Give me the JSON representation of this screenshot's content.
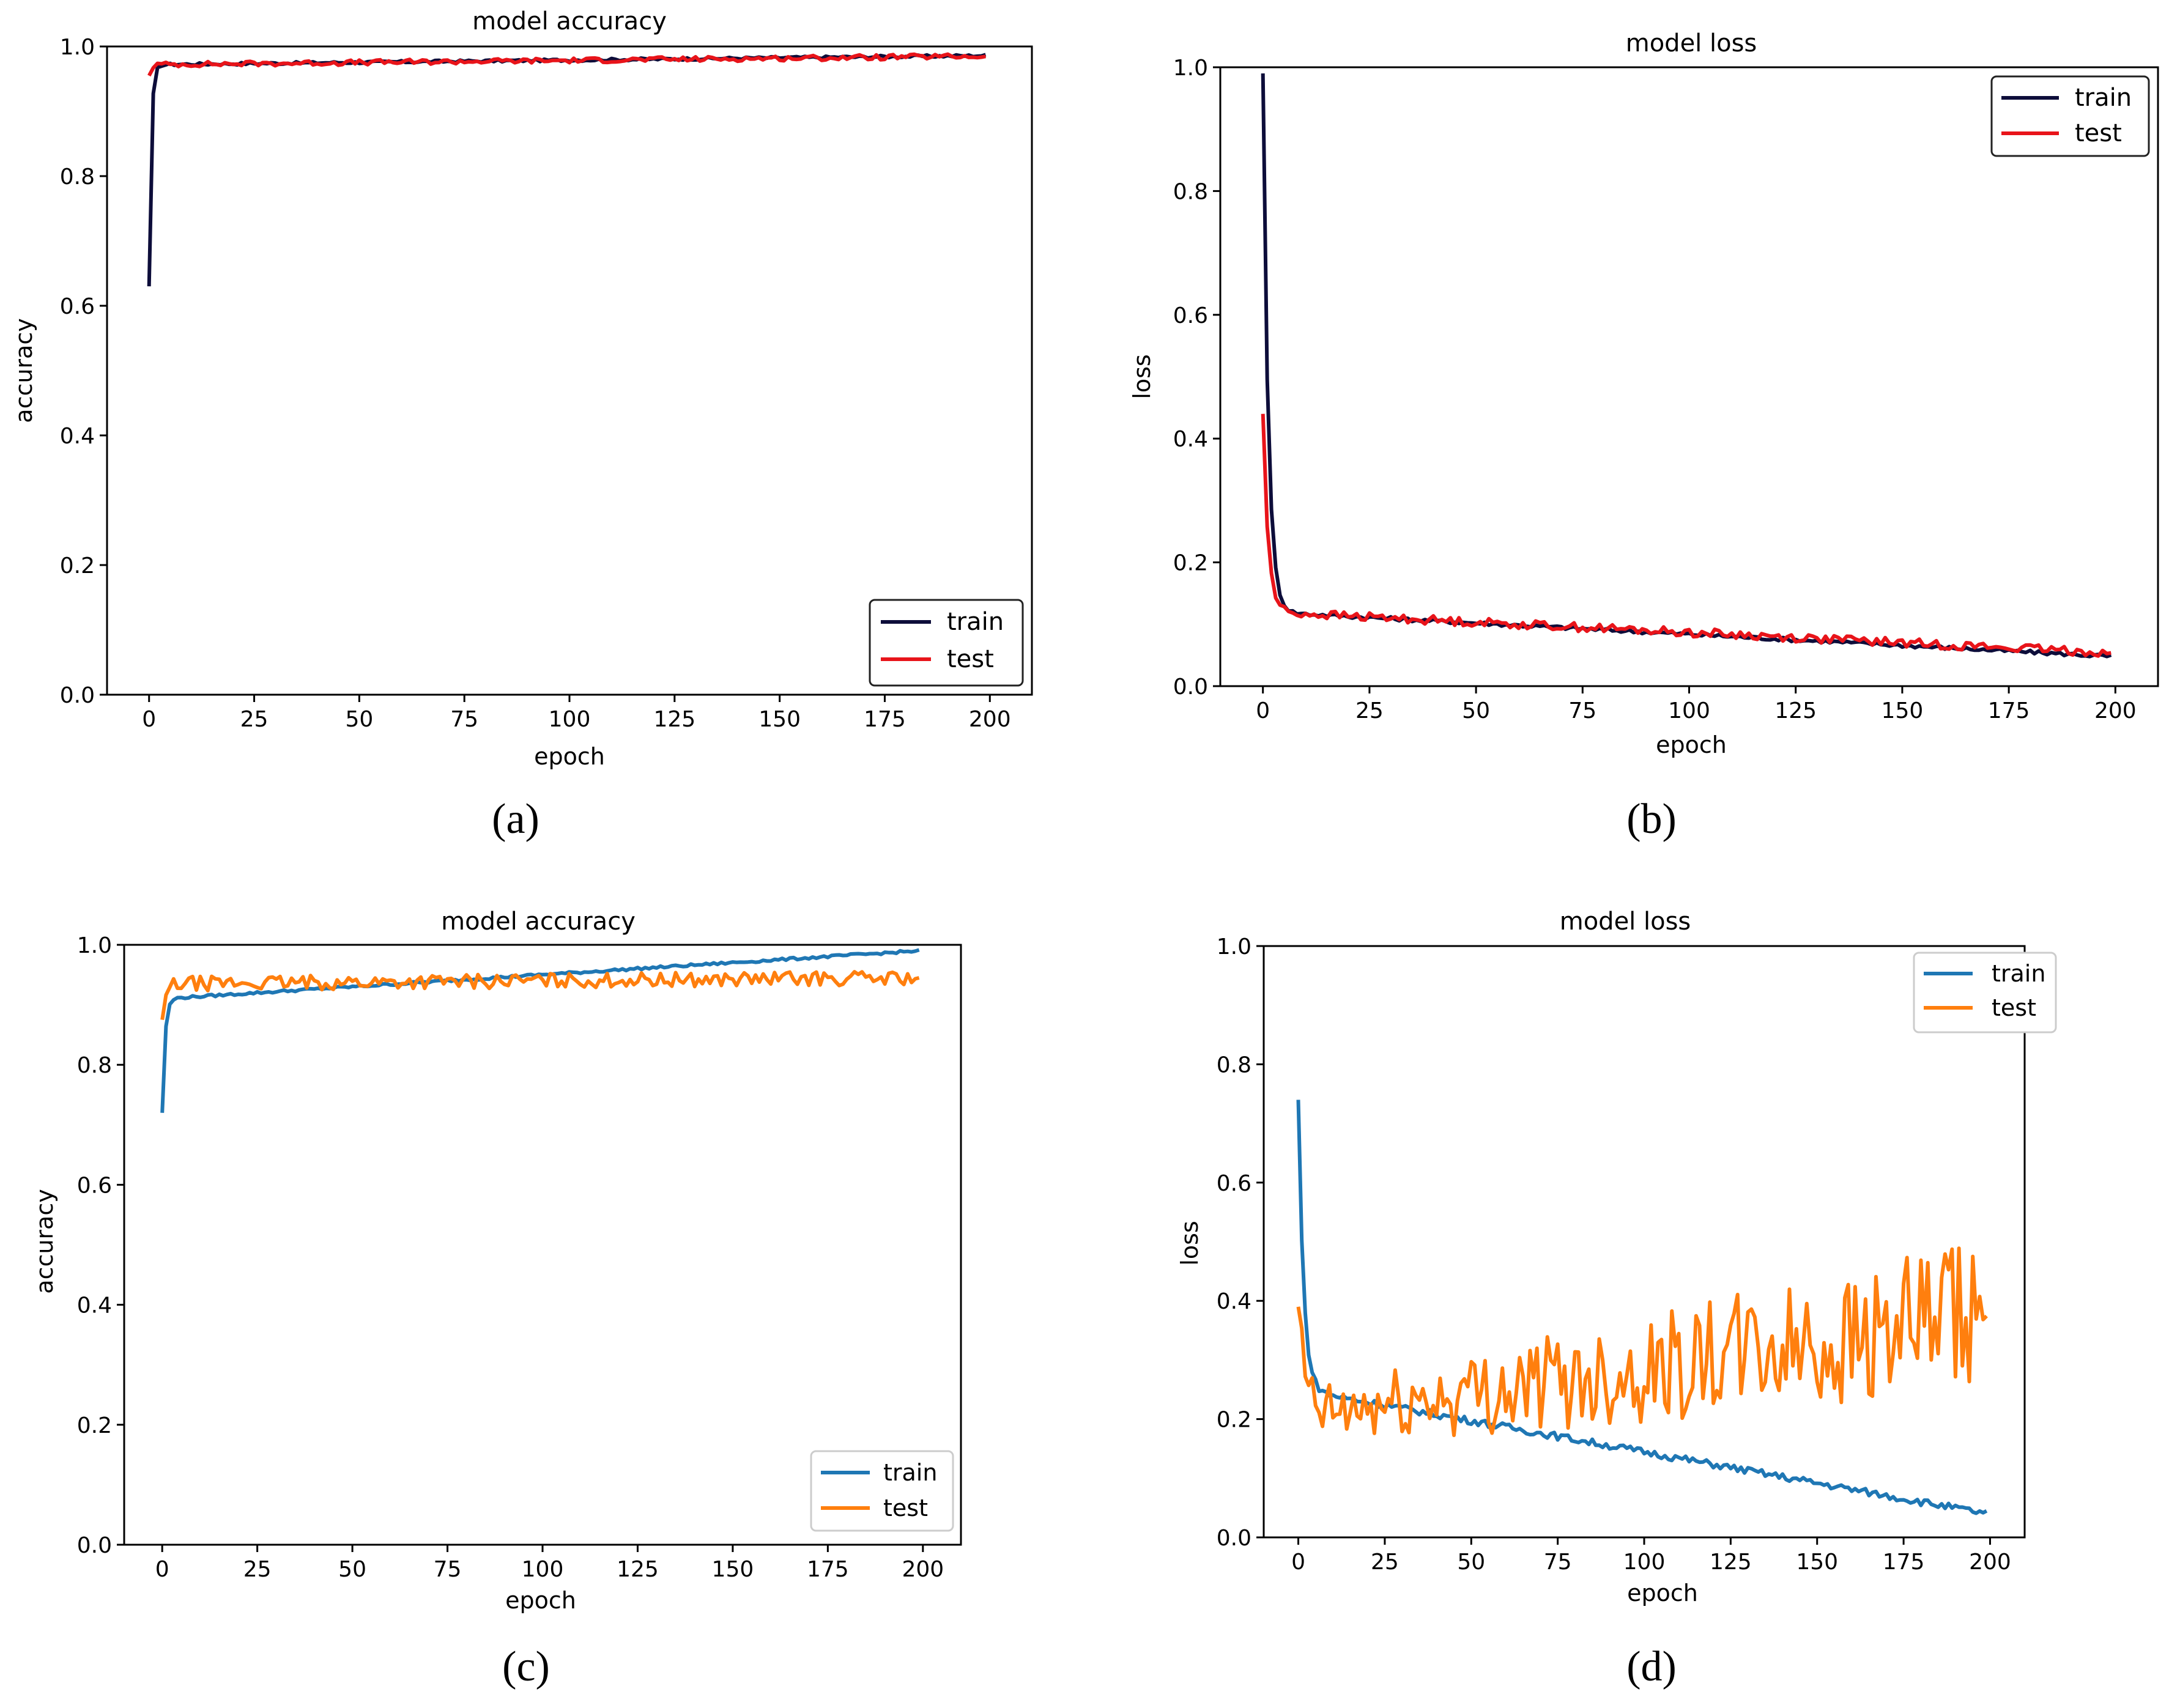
{
  "chart_data": [
    {
      "id": "a",
      "type": "line",
      "panel_label": "(a)",
      "title": "model accuracy",
      "xlabel": "epoch",
      "ylabel": "accuracy",
      "xlim": [
        -10,
        210
      ],
      "ylim": [
        0.0,
        1.0
      ],
      "xticks": [
        "0",
        "25",
        "50",
        "75",
        "100",
        "125",
        "150",
        "175",
        "200"
      ],
      "yticks": [
        "0.0",
        "0.2",
        "0.4",
        "0.6",
        "0.8",
        "1.0"
      ],
      "legend_position": "lower-right",
      "series": [
        {
          "name": "train",
          "color": "#0d0d3a",
          "start": 0.63,
          "plateau": 0.972,
          "end": 0.986,
          "tau": 0.5,
          "noise": 0.002
        },
        {
          "name": "test",
          "color": "#e8141a",
          "start": 0.955,
          "plateau": 0.972,
          "end": 0.985,
          "tau": 0.5,
          "noise": 0.004
        }
      ]
    },
    {
      "id": "b",
      "type": "line",
      "panel_label": "(b)",
      "title": "model loss",
      "xlabel": "epoch",
      "ylabel": "loss",
      "xlim": [
        -10,
        210
      ],
      "ylim": [
        0.0,
        1.0
      ],
      "xticks": [
        "0",
        "25",
        "50",
        "75",
        "100",
        "125",
        "150",
        "175",
        "200"
      ],
      "yticks": [
        "0.0",
        "0.2",
        "0.4",
        "0.6",
        "0.8",
        "1.0"
      ],
      "legend_position": "top-right",
      "series": [
        {
          "name": "train",
          "color": "#0d0d3a",
          "start": 0.99,
          "plateau": 0.12,
          "end": 0.048,
          "tau": 1.2,
          "noise": 0.003
        },
        {
          "name": "test",
          "color": "#e8141a",
          "start": 0.44,
          "plateau": 0.12,
          "end": 0.054,
          "tau": 1.2,
          "noise": 0.007
        }
      ]
    },
    {
      "id": "c",
      "type": "line",
      "panel_label": "(c)",
      "title": "model accuracy",
      "xlabel": "epoch",
      "ylabel": "accuracy",
      "xlim": [
        -10,
        210
      ],
      "ylim": [
        0.0,
        1.0
      ],
      "xticks": [
        "0",
        "25",
        "50",
        "75",
        "100",
        "125",
        "150",
        "175",
        "200"
      ],
      "yticks": [
        "0.0",
        "0.2",
        "0.4",
        "0.6",
        "0.8",
        "1.0"
      ],
      "legend_position": "lower-right",
      "series": [
        {
          "name": "train",
          "color": "#1f77b4",
          "start": 0.72,
          "plateau": 0.91,
          "end": 0.99,
          "tau": 0.7,
          "noise": 0.002
        },
        {
          "name": "test",
          "color": "#ff7f0e",
          "start": 0.875,
          "plateau": 0.935,
          "end": 0.945,
          "tau": 1.0,
          "noise": 0.012
        }
      ]
    },
    {
      "id": "d",
      "type": "line",
      "panel_label": "(d)",
      "title": "model loss",
      "xlabel": "epoch",
      "ylabel": "loss",
      "xlim": [
        -10,
        210
      ],
      "ylim": [
        0.0,
        1.0
      ],
      "xticks": [
        "0",
        "25",
        "50",
        "75",
        "100",
        "125",
        "150",
        "175",
        "200"
      ],
      "yticks": [
        "0.0",
        "0.2",
        "0.4",
        "0.6",
        "0.8",
        "1.0"
      ],
      "legend_position": "top-right",
      "series": [
        {
          "name": "train",
          "color": "#1f77b4",
          "start": 0.74,
          "plateau": 0.25,
          "end": 0.04,
          "tau": 1.5,
          "noise": 0.006
        },
        {
          "name": "test",
          "color": "#ff7f0e",
          "start": 0.39,
          "plateau": 0.2,
          "end": 0.37,
          "tau": 2.0,
          "noise": 0.05
        }
      ]
    }
  ]
}
